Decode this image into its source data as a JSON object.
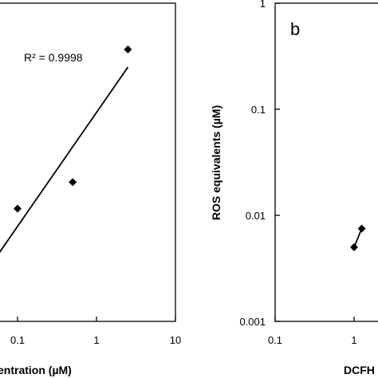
{
  "chart_data": [
    {
      "type": "scatter",
      "x_scale": "log",
      "xlim": [
        0.01,
        10
      ],
      "x_ticks": [
        0.1,
        1,
        10
      ],
      "x_tick_labels": [
        "0.1",
        "1",
        "10"
      ],
      "xlabel": "entration (µM)",
      "ylabel": "",
      "annotation": "R² = 0.9998",
      "grid": false,
      "legend": "none",
      "series": [
        {
          "x": [
            0.1,
            0.5,
            2.5
          ],
          "y": [
            0.04,
            0.2,
            1.0
          ],
          "line": "linear-fit"
        }
      ]
    },
    {
      "type": "line",
      "panel_label": "b",
      "x_scale": "log",
      "y_scale": "log",
      "xlim": [
        0.1,
        10
      ],
      "ylim": [
        0.001,
        1
      ],
      "x_ticks": [
        0.1,
        1
      ],
      "x_tick_labels": [
        "0.1",
        "1"
      ],
      "y_ticks": [
        0.001,
        0.01,
        0.1,
        1
      ],
      "y_tick_labels": [
        "0.001",
        "0.01",
        "0.1",
        "1"
      ],
      "xlabel": "DCFH",
      "ylabel": "ROS equivalents (µM)",
      "grid": false,
      "legend": "none",
      "series": [
        {
          "x": [
            1.0,
            1.25
          ],
          "y": [
            0.005,
            0.0075
          ]
        }
      ]
    }
  ]
}
